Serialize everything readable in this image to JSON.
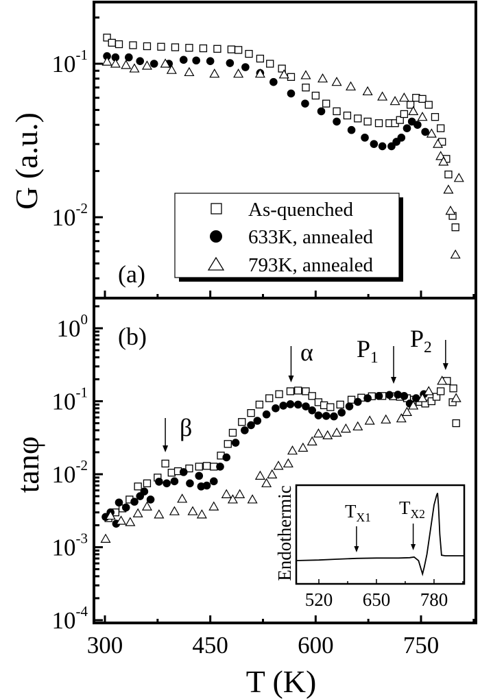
{
  "chart_data": [
    {
      "panel": "(a)",
      "type": "scatter",
      "ylabel": "G (a.u.)",
      "xlabel": "",
      "yscale": "log",
      "xlim": [
        284,
        828
      ],
      "ylim": [
        0.0029,
        0.25
      ],
      "y_ticks": [
        {
          "value": 0.1,
          "base": "10",
          "exp": "-1"
        },
        {
          "value": 0.01,
          "base": "10",
          "exp": "-2"
        }
      ],
      "x_ticks": [
        300,
        450,
        600,
        750
      ],
      "legend": {
        "placement": "bottom-center",
        "entries": [
          "As-quenched",
          "633K, annealed",
          "793K, annealed"
        ]
      },
      "series": [
        {
          "name": "As-quenched",
          "marker": "open-square",
          "x": [
            303,
            310,
            320,
            340,
            360,
            380,
            400,
            420,
            440,
            460,
            480,
            490,
            505,
            521,
            535,
            552,
            565,
            586,
            600,
            615,
            630,
            645,
            660,
            674,
            690,
            705,
            713,
            720,
            726,
            735,
            743,
            752,
            761,
            770,
            778,
            780,
            786,
            789,
            795,
            799
          ],
          "y": [
            0.148,
            0.137,
            0.134,
            0.132,
            0.13,
            0.129,
            0.128,
            0.127,
            0.126,
            0.125,
            0.124,
            0.123,
            0.116,
            0.108,
            0.1,
            0.093,
            0.082,
            0.07,
            0.062,
            0.055,
            0.049,
            0.046,
            0.044,
            0.042,
            0.041,
            0.041,
            0.041,
            0.043,
            0.047,
            0.054,
            0.06,
            0.059,
            0.054,
            0.045,
            0.038,
            0.031,
            0.024,
            0.019,
            0.0102,
            0.0086
          ]
        },
        {
          "name": "633K, annealed",
          "marker": "filled-circle",
          "x": [
            303,
            315,
            334,
            350,
            370,
            391,
            412,
            430,
            450,
            478,
            500,
            521,
            540,
            565,
            585,
            608,
            630,
            651,
            670,
            683,
            695,
            708,
            715,
            722,
            730,
            737,
            745,
            756
          ],
          "y": [
            0.112,
            0.11,
            0.11,
            0.104,
            0.1,
            0.1,
            0.106,
            0.105,
            0.104,
            0.101,
            0.095,
            0.087,
            0.076,
            0.064,
            0.055,
            0.049,
            0.042,
            0.037,
            0.033,
            0.03,
            0.029,
            0.029,
            0.031,
            0.033,
            0.038,
            0.042,
            0.04,
            0.036
          ]
        },
        {
          "name": "793K, annealed",
          "marker": "open-triangle",
          "x": [
            303,
            315,
            330,
            342,
            360,
            386,
            395,
            420,
            456,
            490,
            521,
            555,
            586,
            610,
            630,
            650,
            674,
            695,
            713,
            726,
            739,
            752,
            765,
            774,
            778,
            782,
            789,
            792,
            799,
            804
          ],
          "y": [
            0.103,
            0.1,
            0.098,
            0.093,
            0.097,
            0.1,
            0.091,
            0.088,
            0.086,
            0.086,
            0.086,
            0.085,
            0.084,
            0.08,
            0.076,
            0.071,
            0.066,
            0.061,
            0.057,
            0.06,
            0.049,
            0.045,
            0.035,
            0.03,
            0.025,
            0.023,
            0.0151,
            0.011,
            0.0057,
            0.018
          ]
        }
      ]
    },
    {
      "panel": "(b)",
      "type": "scatter",
      "ylabel": "tanφ",
      "xlabel": "T (K)",
      "yscale": "log",
      "xlim": [
        284,
        828
      ],
      "ylim": [
        9e-05,
        2.6
      ],
      "y_ticks": [
        {
          "value": 1,
          "base": "10",
          "exp": "0"
        },
        {
          "value": 0.1,
          "base": "10",
          "exp": "-1"
        },
        {
          "value": 0.01,
          "base": "10",
          "exp": "-2"
        },
        {
          "value": 0.001,
          "base": "10",
          "exp": "-3"
        },
        {
          "value": 0.0001,
          "base": "10",
          "exp": "-4"
        }
      ],
      "x_ticks": [
        300,
        450,
        600,
        750
      ],
      "annotations": [
        {
          "label": "β",
          "sub": "",
          "x": 386
        },
        {
          "label": "α",
          "sub": "",
          "x": 565
        },
        {
          "label": "P",
          "sub": "1",
          "x": 711
        },
        {
          "label": "P",
          "sub": "2",
          "x": 785
        }
      ],
      "series": [
        {
          "name": "As-quenched",
          "marker": "open-square",
          "x": [
            305,
            315,
            325,
            335,
            347,
            360,
            375,
            386,
            395,
            404,
            420,
            434,
            445,
            455,
            465,
            475,
            482,
            495,
            508,
            520,
            534,
            548,
            564,
            575,
            586,
            595,
            604,
            612,
            621,
            635,
            651,
            665,
            680,
            695,
            710,
            720,
            730,
            740,
            748,
            756,
            765,
            772,
            778,
            787,
            796,
            795,
            800
          ],
          "y": [
            0.0025,
            0.003,
            0.0034,
            0.0045,
            0.0068,
            0.0075,
            0.009,
            0.014,
            0.0105,
            0.011,
            0.012,
            0.0127,
            0.013,
            0.0127,
            0.018,
            0.026,
            0.037,
            0.052,
            0.069,
            0.09,
            0.11,
            0.125,
            0.137,
            0.14,
            0.137,
            0.118,
            0.097,
            0.088,
            0.083,
            0.09,
            0.105,
            0.112,
            0.117,
            0.118,
            0.117,
            0.115,
            0.11,
            0.105,
            0.098,
            0.093,
            0.1,
            0.115,
            0.137,
            0.19,
            0.15,
            0.097,
            0.05
          ]
        },
        {
          "name": "633K, annealed",
          "marker": "filled-circle",
          "x": [
            301,
            308,
            316,
            320,
            330,
            342,
            350,
            356,
            365,
            377,
            388,
            399,
            412,
            421,
            434,
            437,
            445,
            455,
            464,
            473,
            486,
            499,
            508,
            517,
            530,
            543,
            554,
            564,
            575,
            586,
            595,
            604,
            615,
            626,
            637,
            648,
            660,
            674,
            690,
            705,
            717,
            726,
            734,
            743,
            754
          ],
          "y": [
            0.0026,
            0.003,
            0.0021,
            0.0041,
            0.0035,
            0.0042,
            0.005,
            0.0058,
            0.0045,
            0.0079,
            0.0075,
            0.008,
            0.0107,
            0.0075,
            0.0095,
            0.0068,
            0.007,
            0.008,
            0.0127,
            0.017,
            0.027,
            0.04,
            0.047,
            0.054,
            0.066,
            0.08,
            0.087,
            0.091,
            0.09,
            0.085,
            0.075,
            0.064,
            0.063,
            0.062,
            0.07,
            0.085,
            0.098,
            0.11,
            0.118,
            0.122,
            0.123,
            0.118,
            0.093,
            0.11,
            0.125
          ]
        },
        {
          "name": "793K, annealed",
          "marker": "open-triangle",
          "x": [
            301,
            308,
            323,
            336,
            347,
            360,
            377,
            399,
            410,
            425,
            438,
            455,
            473,
            482,
            492,
            510,
            521,
            530,
            538,
            547,
            561,
            567,
            582,
            595,
            604,
            617,
            630,
            643,
            660,
            677,
            700,
            722,
            730,
            739,
            752,
            761,
            780,
            800
          ],
          "y": [
            0.0013,
            0.0027,
            0.0023,
            0.0022,
            0.0029,
            0.0036,
            0.0028,
            0.0031,
            0.0046,
            0.0031,
            0.0028,
            0.0036,
            0.0053,
            0.0045,
            0.0053,
            0.0045,
            0.0095,
            0.0075,
            0.0099,
            0.013,
            0.014,
            0.021,
            0.023,
            0.028,
            0.036,
            0.034,
            0.037,
            0.042,
            0.045,
            0.054,
            0.056,
            0.058,
            0.071,
            0.087,
            0.11,
            0.137,
            0.19,
            0.11
          ]
        }
      ],
      "inset": {
        "type": "line",
        "ylabel": "Endothermic",
        "xlim": [
          469,
          848
        ],
        "x_ticks": [
          520,
          650,
          780
        ],
        "annotations": [
          {
            "label": "T",
            "sub": "X1",
            "x": 605
          },
          {
            "label": "T",
            "sub": "X2",
            "x": 733
          }
        ],
        "series": {
          "x": [
            469,
            520,
            560,
            605,
            650,
            700,
            725,
            735,
            745,
            750,
            754,
            758,
            764,
            772,
            780,
            786,
            788,
            790,
            793,
            797,
            805,
            848
          ],
          "y": [
            0.236,
            0.242,
            0.25,
            0.258,
            0.262,
            0.262,
            0.265,
            0.272,
            0.235,
            0.16,
            0.1,
            0.17,
            0.3,
            0.55,
            0.8,
            0.9,
            0.92,
            0.8,
            0.5,
            0.29,
            0.285,
            0.285
          ]
        }
      }
    }
  ]
}
